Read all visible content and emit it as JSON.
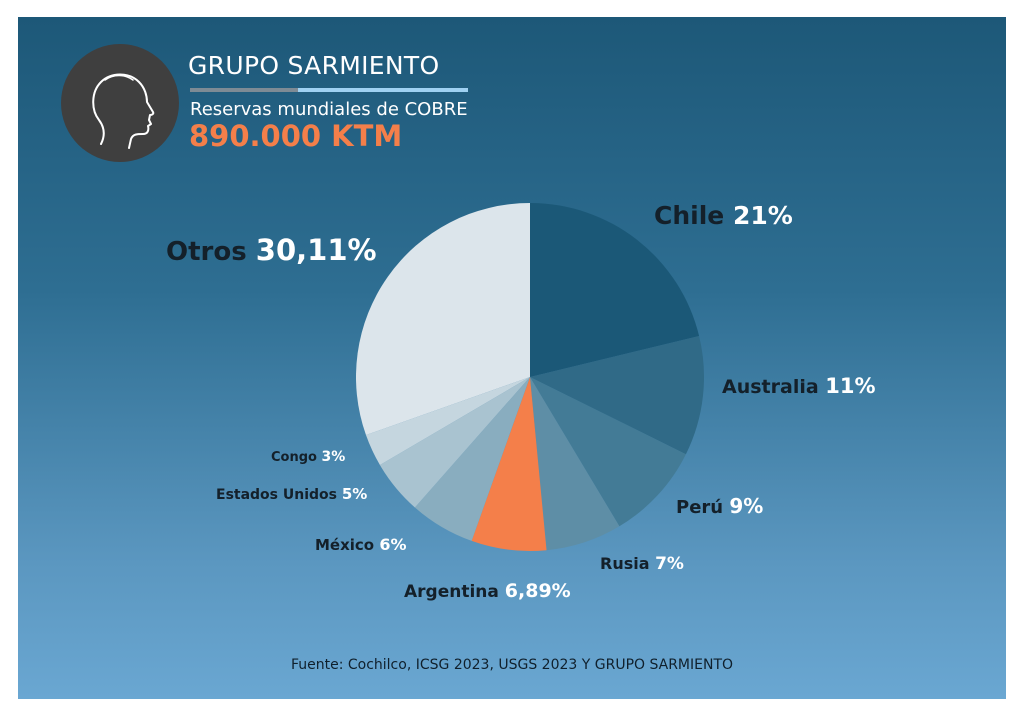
{
  "header": {
    "brand": "GRUPO SARMIENTO",
    "subtitle": "Reservas mundiales de COBRE",
    "headline": "890.000 KTM",
    "avatar_icon": "person-profile-silhouette-icon"
  },
  "colors": {
    "background_top": "#1d5878",
    "background_bottom": "#6aa7d2",
    "accent_orange": "#f47f4a",
    "accent_blue_line": "#9fd1f2",
    "avatar_bg": "#3f3f3f"
  },
  "chart_data": {
    "type": "pie",
    "start": "top, clockwise",
    "slices": [
      {
        "name": "Chile",
        "value": 21,
        "label": "21%",
        "color": "#1b5877"
      },
      {
        "name": "Australia",
        "value": 11,
        "label": "11%",
        "color": "#306a87"
      },
      {
        "name": "Perú",
        "value": 9,
        "label": "9%",
        "color": "#437b96"
      },
      {
        "name": "Rusia",
        "value": 7,
        "label": "7%",
        "color": "#5e8ea6"
      },
      {
        "name": "Argentina",
        "value": 6.89,
        "label": "6,89%",
        "color": "#f47f4a"
      },
      {
        "name": "México",
        "value": 6,
        "label": "6%",
        "color": "#89adbf"
      },
      {
        "name": "Estados Unidos",
        "value": 5,
        "label": "5%",
        "color": "#a9c3d0"
      },
      {
        "name": "Congo",
        "value": 3,
        "label": "3%",
        "color": "#c5d6df"
      },
      {
        "name": "Otros",
        "value": 30.11,
        "label": "30,11%",
        "color": "#dce5eb"
      }
    ]
  },
  "footer": {
    "source": "Fuente: Cochilco, ICSG 2023, USGS 2023 Y GRUPO SARMIENTO"
  }
}
